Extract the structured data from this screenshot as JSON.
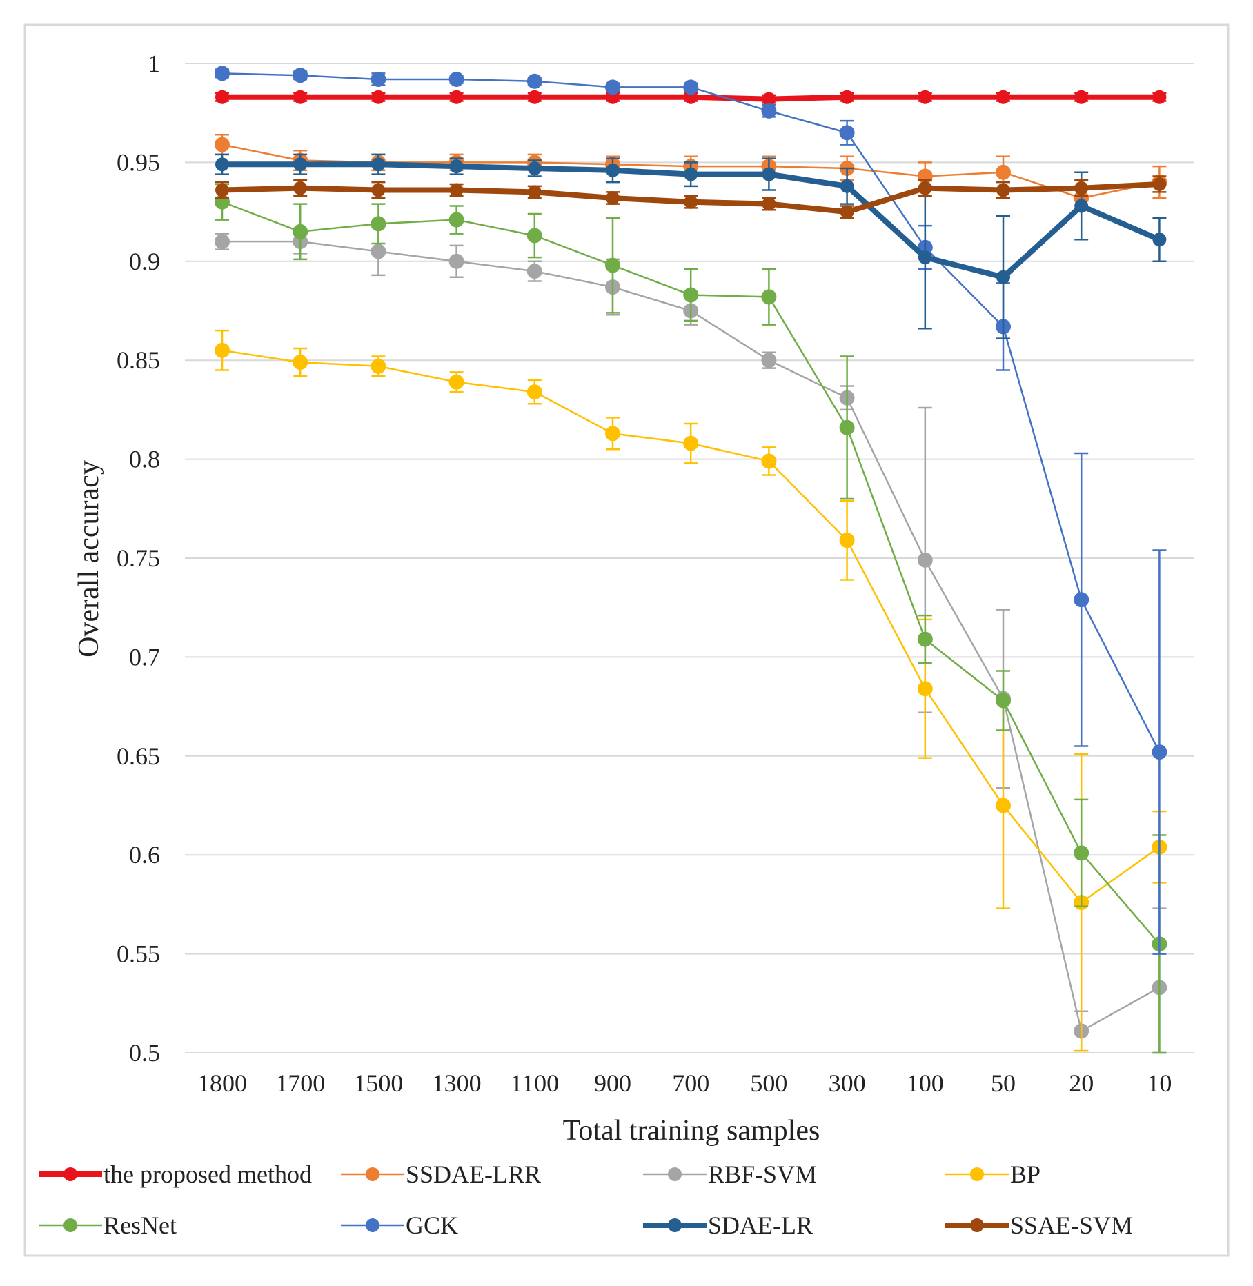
{
  "chart_data": {
    "type": "line",
    "title": "",
    "xlabel": "Total training samples",
    "ylabel": "Overall accuracy",
    "categories": [
      "1800",
      "1700",
      "1500",
      "1300",
      "1100",
      "900",
      "700",
      "500",
      "300",
      "100",
      "50",
      "20",
      "10"
    ],
    "yticks": [
      "0.5",
      "0.55",
      "0.6",
      "0.65",
      "0.7",
      "0.75",
      "0.8",
      "0.85",
      "0.9",
      "0.95",
      "1"
    ],
    "ylim": [
      0.5,
      1.0
    ],
    "grid": true,
    "legend_position": "bottom",
    "series": [
      {
        "name": "the proposed method",
        "color": "#e8141c",
        "bold": true,
        "values": [
          0.983,
          0.983,
          0.983,
          0.983,
          0.983,
          0.983,
          0.983,
          0.982,
          0.983,
          0.983,
          0.983,
          0.983,
          0.983
        ],
        "errors": [
          0.002,
          0.002,
          0.002,
          0.002,
          0.002,
          0.002,
          0.002,
          0.002,
          0.002,
          0.002,
          0.002,
          0.002,
          0.002
        ]
      },
      {
        "name": "SSDAE-LRR",
        "color": "#ed7d31",
        "bold": false,
        "values": [
          0.959,
          0.951,
          0.95,
          0.95,
          0.95,
          0.949,
          0.948,
          0.948,
          0.947,
          0.943,
          0.945,
          0.932,
          0.94
        ],
        "errors": [
          0.005,
          0.005,
          0.004,
          0.004,
          0.004,
          0.004,
          0.005,
          0.005,
          0.006,
          0.007,
          0.008,
          0.006,
          0.008
        ]
      },
      {
        "name": "RBF-SVM",
        "color": "#a5a5a5",
        "bold": false,
        "values": [
          0.91,
          0.91,
          0.905,
          0.9,
          0.895,
          0.887,
          0.875,
          0.85,
          0.831,
          0.749,
          0.679,
          0.511,
          0.533
        ],
        "errors": [
          0.004,
          0.006,
          0.012,
          0.008,
          0.005,
          0.014,
          0.007,
          0.004,
          0.006,
          0.077,
          0.045,
          0.01,
          0.04
        ]
      },
      {
        "name": "BP",
        "color": "#ffc000",
        "bold": false,
        "values": [
          0.855,
          0.849,
          0.847,
          0.839,
          0.834,
          0.813,
          0.808,
          0.799,
          0.759,
          0.684,
          0.625,
          0.576,
          0.604
        ],
        "errors": [
          0.01,
          0.007,
          0.005,
          0.005,
          0.006,
          0.008,
          0.01,
          0.007,
          0.02,
          0.035,
          0.052,
          0.075,
          0.018
        ]
      },
      {
        "name": "ResNet",
        "color": "#70ad47",
        "bold": false,
        "values": [
          0.93,
          0.915,
          0.919,
          0.921,
          0.913,
          0.898,
          0.883,
          0.882,
          0.816,
          0.709,
          0.678,
          0.601,
          0.555
        ],
        "errors": [
          0.009,
          0.014,
          0.01,
          0.007,
          0.011,
          0.024,
          0.013,
          0.014,
          0.036,
          0.012,
          0.015,
          0.027,
          0.055
        ]
      },
      {
        "name": "GCK",
        "color": "#4472c4",
        "bold": false,
        "values": [
          0.995,
          0.994,
          0.992,
          0.992,
          0.991,
          0.988,
          0.988,
          0.976,
          0.965,
          0.907,
          0.867,
          0.729,
          0.652
        ],
        "errors": [
          0.002,
          0.002,
          0.003,
          0.002,
          0.002,
          0.002,
          0.002,
          0.003,
          0.006,
          0.011,
          0.022,
          0.074,
          0.102
        ]
      },
      {
        "name": "SDAE-LR",
        "color": "#255e91",
        "bold": true,
        "values": [
          0.949,
          0.949,
          0.949,
          0.948,
          0.947,
          0.946,
          0.944,
          0.944,
          0.938,
          0.902,
          0.892,
          0.928,
          0.911
        ],
        "errors": [
          0.005,
          0.005,
          0.005,
          0.004,
          0.004,
          0.006,
          0.006,
          0.008,
          0.009,
          0.036,
          0.031,
          0.017,
          0.011
        ]
      },
      {
        "name": "SSAE-SVM",
        "color": "#9e480e",
        "bold": true,
        "values": [
          0.936,
          0.937,
          0.936,
          0.936,
          0.935,
          0.932,
          0.93,
          0.929,
          0.925,
          0.937,
          0.936,
          0.937,
          0.939
        ],
        "errors": [
          0.004,
          0.004,
          0.004,
          0.003,
          0.003,
          0.003,
          0.003,
          0.003,
          0.003,
          0.004,
          0.004,
          0.004,
          0.004
        ]
      }
    ]
  }
}
